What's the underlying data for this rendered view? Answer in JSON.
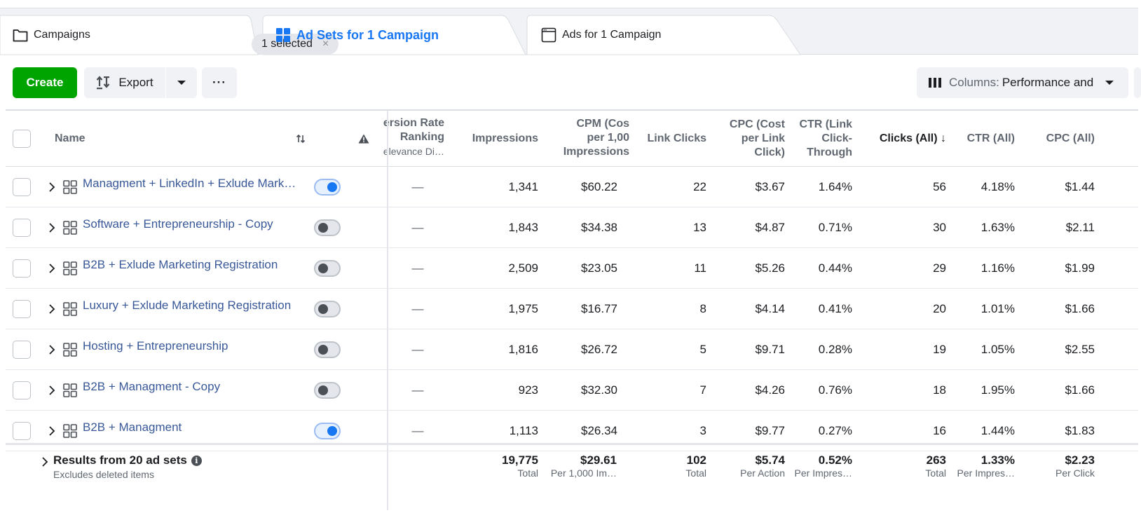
{
  "tabs": {
    "campaigns": {
      "label": "Campaigns",
      "selected_pill": "1 selected",
      "close_glyph": "×"
    },
    "adsets": {
      "label": "Ad Sets for 1 Campaign"
    },
    "ads": {
      "label": "Ads for 1 Campaign"
    }
  },
  "toolbar": {
    "create_label": "Create",
    "export_label": "Export",
    "more_label": "···",
    "columns_prefix": "Columns:",
    "columns_value": "Performance and"
  },
  "colors": {
    "accent": "#1877f2",
    "create": "#00a400",
    "link": "#385898"
  },
  "table": {
    "headers": {
      "name": "Name",
      "conv_rate_l1": "ersion Rate",
      "conv_rate_l2": "Ranking",
      "conv_rate_l3": "elevance Di…",
      "impressions": "Impressions",
      "cpm_l1": "CPM (Cos",
      "cpm_l2": "per 1,00",
      "cpm_l3": "Impressions",
      "link_clicks": "Link Clicks",
      "cpc_l1": "CPC (Cost",
      "cpc_l2": "per Link",
      "cpc_l3": "Click)",
      "ctr_l1": "CTR (Link",
      "ctr_l2": "Click-",
      "ctr_l3": "Through",
      "clicks_all": "Clicks (All) ↓",
      "ctr_all": "CTR (All)",
      "cpc_all": "CPC (All)"
    },
    "rows": [
      {
        "name": "Managment + LinkedIn + Exlude Mark…",
        "on": true,
        "ranking": "—",
        "impressions": "1,341",
        "cpm": "$60.22",
        "link_clicks": "22",
        "cpc": "$3.67",
        "ctr": "1.64%",
        "clicks_all": "56",
        "ctr_all": "4.18%",
        "cpc_all": "$1.44"
      },
      {
        "name": "Software + Entrepreneurship - Copy",
        "on": false,
        "ranking": "—",
        "impressions": "1,843",
        "cpm": "$34.38",
        "link_clicks": "13",
        "cpc": "$4.87",
        "ctr": "0.71%",
        "clicks_all": "30",
        "ctr_all": "1.63%",
        "cpc_all": "$2.11"
      },
      {
        "name": "B2B + Exlude Marketing Registration",
        "on": false,
        "ranking": "—",
        "impressions": "2,509",
        "cpm": "$23.05",
        "link_clicks": "11",
        "cpc": "$5.26",
        "ctr": "0.44%",
        "clicks_all": "29",
        "ctr_all": "1.16%",
        "cpc_all": "$1.99"
      },
      {
        "name": "Luxury + Exlude Marketing Registration",
        "on": false,
        "ranking": "—",
        "impressions": "1,975",
        "cpm": "$16.77",
        "link_clicks": "8",
        "cpc": "$4.14",
        "ctr": "0.41%",
        "clicks_all": "20",
        "ctr_all": "1.01%",
        "cpc_all": "$1.66"
      },
      {
        "name": "Hosting + Entrepreneurship",
        "on": false,
        "ranking": "—",
        "impressions": "1,816",
        "cpm": "$26.72",
        "link_clicks": "5",
        "cpc": "$9.71",
        "ctr": "0.28%",
        "clicks_all": "19",
        "ctr_all": "1.05%",
        "cpc_all": "$2.55"
      },
      {
        "name": "B2B + Managment - Copy",
        "on": false,
        "ranking": "—",
        "impressions": "923",
        "cpm": "$32.30",
        "link_clicks": "7",
        "cpc": "$4.26",
        "ctr": "0.76%",
        "clicks_all": "18",
        "ctr_all": "1.95%",
        "cpc_all": "$1.66"
      },
      {
        "name": "B2B + Managment",
        "on": true,
        "ranking": "—",
        "impressions": "1,113",
        "cpm": "$26.34",
        "link_clicks": "3",
        "cpc": "$9.77",
        "ctr": "0.27%",
        "clicks_all": "16",
        "ctr_all": "1.44%",
        "cpc_all": "$1.83"
      }
    ],
    "footer": {
      "title": "Results from 20 ad sets",
      "subtitle": "Excludes deleted items",
      "impressions": {
        "value": "19,775",
        "label": "Total"
      },
      "cpm": {
        "value": "$29.61",
        "label": "Per 1,000 Im…"
      },
      "link_clicks": {
        "value": "102",
        "label": "Total"
      },
      "cpc": {
        "value": "$5.74",
        "label": "Per Action"
      },
      "ctr": {
        "value": "0.52%",
        "label": "Per Impres…"
      },
      "clicks_all": {
        "value": "263",
        "label": "Total"
      },
      "ctr_all": {
        "value": "1.33%",
        "label": "Per Impres…"
      },
      "cpc_all": {
        "value": "$2.23",
        "label": "Per Click"
      }
    }
  }
}
